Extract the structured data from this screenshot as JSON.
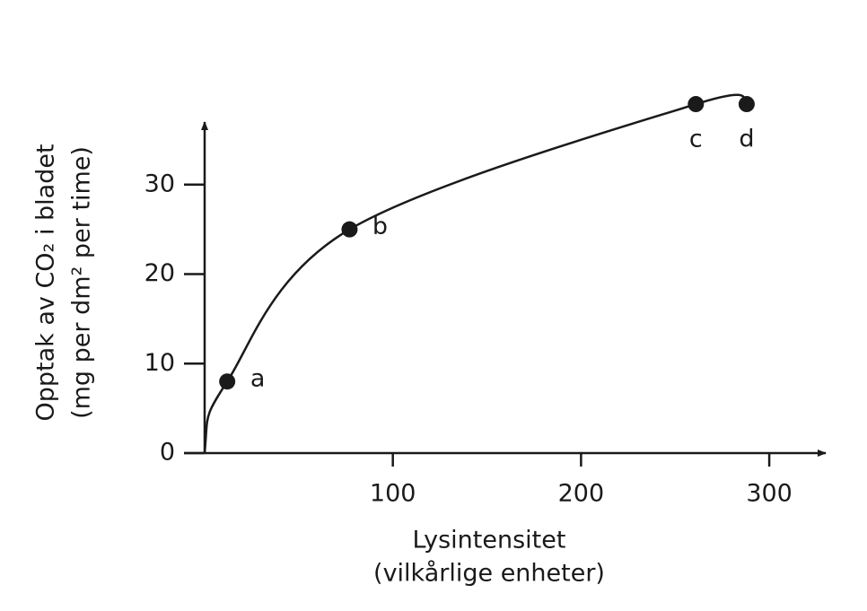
{
  "chart_data": {
    "type": "line",
    "x_label": [
      "Lysintensitet",
      "(vilkårlige enheter)"
    ],
    "y_label": [
      "Opptak av CO₂ i bladet",
      "(mg per dm² per time)"
    ],
    "x": [
      0,
      12,
      77,
      261,
      288
    ],
    "values": [
      0,
      8,
      25,
      39,
      39
    ],
    "point_labels": [
      null,
      "a",
      "b",
      "c",
      "d"
    ],
    "color": "#1a1a1a",
    "xlim": [
      0,
      330
    ],
    "xticks": [
      100,
      200,
      300
    ],
    "ylim": [
      0,
      37
    ],
    "yticks": [
      0,
      10,
      20,
      30
    ]
  }
}
